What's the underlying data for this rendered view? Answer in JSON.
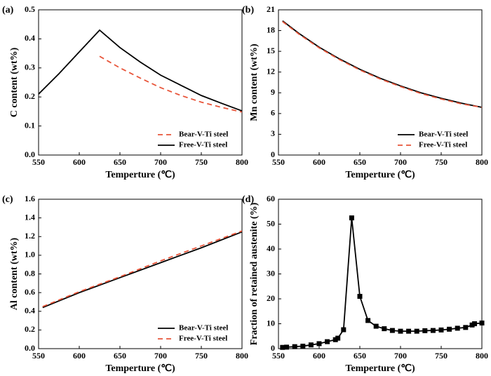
{
  "chart_data": [
    {
      "type": "line",
      "label": "(a)",
      "xlabel": "Temperture (℃)",
      "ylabel": "C content (wt%)",
      "x": [
        550,
        575,
        600,
        625,
        650,
        675,
        700,
        725,
        750,
        775,
        800
      ],
      "series": [
        {
          "name": "Bear-V-Ti steel",
          "color": "#e8553a",
          "linestyle": "dashed",
          "values": [
            null,
            null,
            null,
            0.34,
            0.3,
            0.265,
            0.232,
            0.205,
            0.182,
            0.164,
            0.148
          ]
        },
        {
          "name": "Free-V-Ti steel",
          "color": "#000000",
          "linestyle": "solid",
          "values": [
            0.21,
            0.28,
            0.355,
            0.43,
            0.37,
            0.32,
            0.275,
            0.24,
            0.205,
            0.178,
            0.152
          ]
        }
      ],
      "xlim": [
        550,
        800
      ],
      "xticks": [
        550,
        600,
        650,
        700,
        750,
        800
      ],
      "ylim": [
        0,
        0.5
      ],
      "yticks": [
        {
          "value": 0,
          "label": "0.0"
        },
        0.1,
        0.2,
        0.3,
        0.4,
        0.5
      ],
      "legend": "lower right"
    },
    {
      "type": "line",
      "label": "(b)",
      "xlabel": "Temperture (℃)",
      "ylabel": "Mn content (wt%)",
      "x": [
        555,
        575,
        600,
        625,
        650,
        675,
        700,
        725,
        750,
        775,
        800
      ],
      "series": [
        {
          "name": "Bear-V-Ti steel",
          "color": "#000000",
          "linestyle": "solid",
          "values": [
            19.4,
            17.6,
            15.6,
            13.9,
            12.4,
            11.1,
            10.0,
            9.0,
            8.2,
            7.5,
            6.9
          ]
        },
        {
          "name": "Free-V-Ti steel",
          "color": "#e8553a",
          "linestyle": "dashed",
          "values": [
            19.3,
            17.5,
            15.5,
            13.8,
            12.3,
            11.0,
            9.9,
            8.9,
            8.1,
            7.4,
            6.9
          ]
        }
      ],
      "xlim": [
        550,
        800
      ],
      "xticks": [
        550,
        600,
        650,
        700,
        750,
        800
      ],
      "ylim": [
        0,
        21
      ],
      "yticks": [
        0,
        3,
        6,
        9,
        12,
        15,
        18,
        21
      ],
      "legend": "lower right"
    },
    {
      "type": "line",
      "label": "(c)",
      "xlabel": "Temperture (℃)",
      "ylabel": "Al content (wt%)",
      "x": [
        555,
        600,
        650,
        700,
        750,
        800
      ],
      "series": [
        {
          "name": "Bear-V-Ti steel",
          "color": "#000000",
          "linestyle": "solid",
          "values": [
            0.44,
            0.6,
            0.76,
            0.92,
            1.08,
            1.25
          ]
        },
        {
          "name": "Free-V-Ti steel",
          "color": "#e8553a",
          "linestyle": "dashed",
          "values": [
            0.45,
            0.61,
            0.77,
            0.94,
            1.1,
            1.26
          ]
        }
      ],
      "xlim": [
        550,
        800
      ],
      "xticks": [
        550,
        600,
        650,
        700,
        750,
        800
      ],
      "ylim": [
        0,
        1.6
      ],
      "yticks": [
        {
          "value": 0,
          "label": "0.0"
        },
        0.2,
        0.4,
        0.6,
        0.8,
        {
          "value": 1,
          "label": "1.0"
        },
        1.2,
        1.4,
        1.6
      ],
      "legend": "lower right"
    },
    {
      "type": "line",
      "label": "(d)",
      "xlabel": "Temperture (℃)",
      "ylabel": "Fraction of retained austenite (%)",
      "x": [
        555,
        560,
        570,
        580,
        590,
        600,
        610,
        620,
        623,
        630,
        640,
        650,
        660,
        670,
        680,
        690,
        700,
        710,
        720,
        730,
        740,
        750,
        760,
        770,
        780,
        788,
        791,
        800
      ],
      "series": [
        {
          "color": "#000000",
          "linestyle": "solid",
          "marker": "square",
          "values": [
            0.5,
            0.6,
            0.8,
            1.0,
            1.5,
            2.0,
            2.8,
            3.6,
            4.2,
            7.6,
            52.5,
            21,
            11.3,
            9.0,
            8.0,
            7.3,
            7.0,
            7.0,
            7.0,
            7.2,
            7.3,
            7.5,
            7.8,
            8.2,
            8.5,
            9.5,
            10.0,
            10.3
          ]
        }
      ],
      "xlim": [
        550,
        800
      ],
      "xticks": [
        550,
        600,
        650,
        700,
        750,
        800
      ],
      "ylim": [
        0,
        60
      ],
      "yticks": [
        0,
        10,
        20,
        30,
        40,
        50,
        60
      ]
    }
  ]
}
